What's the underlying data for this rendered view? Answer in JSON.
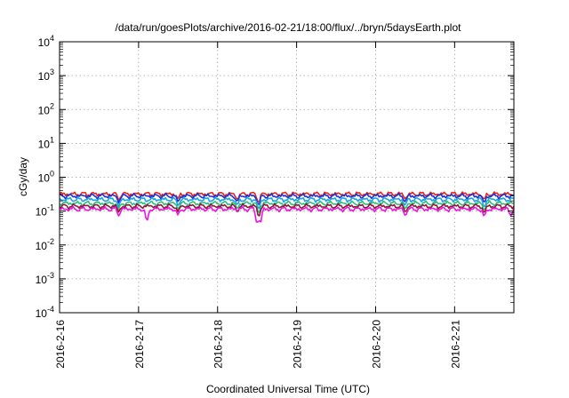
{
  "chart_data": {
    "type": "line",
    "title": "/data/run/goesPlots/archive/2016-02-21/18:00/flux/../bryn/5daysEarth.plot",
    "xlabel": "Coordinated Universal Time (UTC)",
    "ylabel": "cGy/day",
    "yscale": "log",
    "ylim": [
      0.0001,
      10000
    ],
    "xlim": [
      "2016-02-16 00:00",
      "2016-02-21 18:00"
    ],
    "grid": true,
    "legend": "none",
    "x_tick_labels": [
      "2016-2-16",
      "2016-2-17",
      "2016-2-18",
      "2016-2-19",
      "2016-2-20",
      "2016-2-21"
    ],
    "y_ticks": [
      {
        "value": 0.0001,
        "base": "10",
        "exp": "-4"
      },
      {
        "value": 0.001,
        "base": "10",
        "exp": "-3"
      },
      {
        "value": 0.01,
        "base": "10",
        "exp": "-2"
      },
      {
        "value": 0.1,
        "base": "10",
        "exp": "-1"
      },
      {
        "value": 1,
        "base": "10",
        "exp": "0"
      },
      {
        "value": 10,
        "base": "10",
        "exp": "1"
      },
      {
        "value": 100,
        "base": "10",
        "exp": "2"
      },
      {
        "value": 1000,
        "base": "10",
        "exp": "3"
      },
      {
        "value": 10000,
        "base": "10",
        "exp": "4"
      }
    ],
    "series": [
      {
        "color": "#e8251c",
        "level": 0.32,
        "dips": [
          [
            "2016-02-16 18:00",
            0.2
          ],
          [
            "2016-02-17 12:00",
            0.22
          ],
          [
            "2016-02-18 06:00",
            0.21
          ],
          [
            "2016-02-18 12:30",
            0.15
          ],
          [
            "2016-02-20 09:00",
            0.22
          ],
          [
            "2016-02-21 09:00",
            0.2
          ]
        ]
      },
      {
        "color": "#1f2fd6",
        "level": 0.28,
        "dips": [
          [
            "2016-02-16 18:00",
            0.17
          ],
          [
            "2016-02-17 12:00",
            0.18
          ],
          [
            "2016-02-18 06:00",
            0.18
          ],
          [
            "2016-02-18 12:30",
            0.12
          ],
          [
            "2016-02-20 09:00",
            0.18
          ],
          [
            "2016-02-21 09:00",
            0.16
          ]
        ]
      },
      {
        "color": "#19a3e8",
        "level": 0.22,
        "dips": [
          [
            "2016-02-16 18:00",
            0.13
          ],
          [
            "2016-02-17 12:00",
            0.14
          ],
          [
            "2016-02-18 06:00",
            0.14
          ],
          [
            "2016-02-18 12:30",
            0.09
          ],
          [
            "2016-02-20 09:00",
            0.14
          ],
          [
            "2016-02-21 09:00",
            0.12
          ]
        ]
      },
      {
        "color": "#2fbf7a",
        "level": 0.17,
        "dips": [
          [
            "2016-02-16 18:00",
            0.11
          ],
          [
            "2016-02-17 12:00",
            0.11
          ],
          [
            "2016-02-18 06:00",
            0.11
          ],
          [
            "2016-02-18 12:30",
            0.07
          ],
          [
            "2016-02-20 09:00",
            0.11
          ],
          [
            "2016-02-21 09:00",
            0.1
          ]
        ]
      },
      {
        "color": "#8a1a3a",
        "level": 0.14,
        "dips": [
          [
            "2016-02-16 18:00",
            0.09
          ],
          [
            "2016-02-17 12:00",
            0.09
          ],
          [
            "2016-02-18 06:00",
            0.09
          ],
          [
            "2016-02-18 12:30",
            0.055
          ],
          [
            "2016-02-20 09:00",
            0.09
          ],
          [
            "2016-02-21 09:00",
            0.08
          ]
        ]
      },
      {
        "color": "#ee14e0",
        "level": 0.115,
        "dips": [
          [
            "2016-02-17 02:30",
            0.035
          ],
          [
            "2016-02-18 12:00",
            0.03
          ],
          [
            "2016-02-18 13:00",
            0.03
          ],
          [
            "2016-02-16 18:00",
            0.07
          ],
          [
            "2016-02-17 12:00",
            0.07
          ],
          [
            "2016-02-20 09:00",
            0.07
          ],
          [
            "2016-02-21 09:00",
            0.06
          ],
          [
            "2016-02-21 17:00",
            0.07
          ]
        ]
      }
    ]
  }
}
